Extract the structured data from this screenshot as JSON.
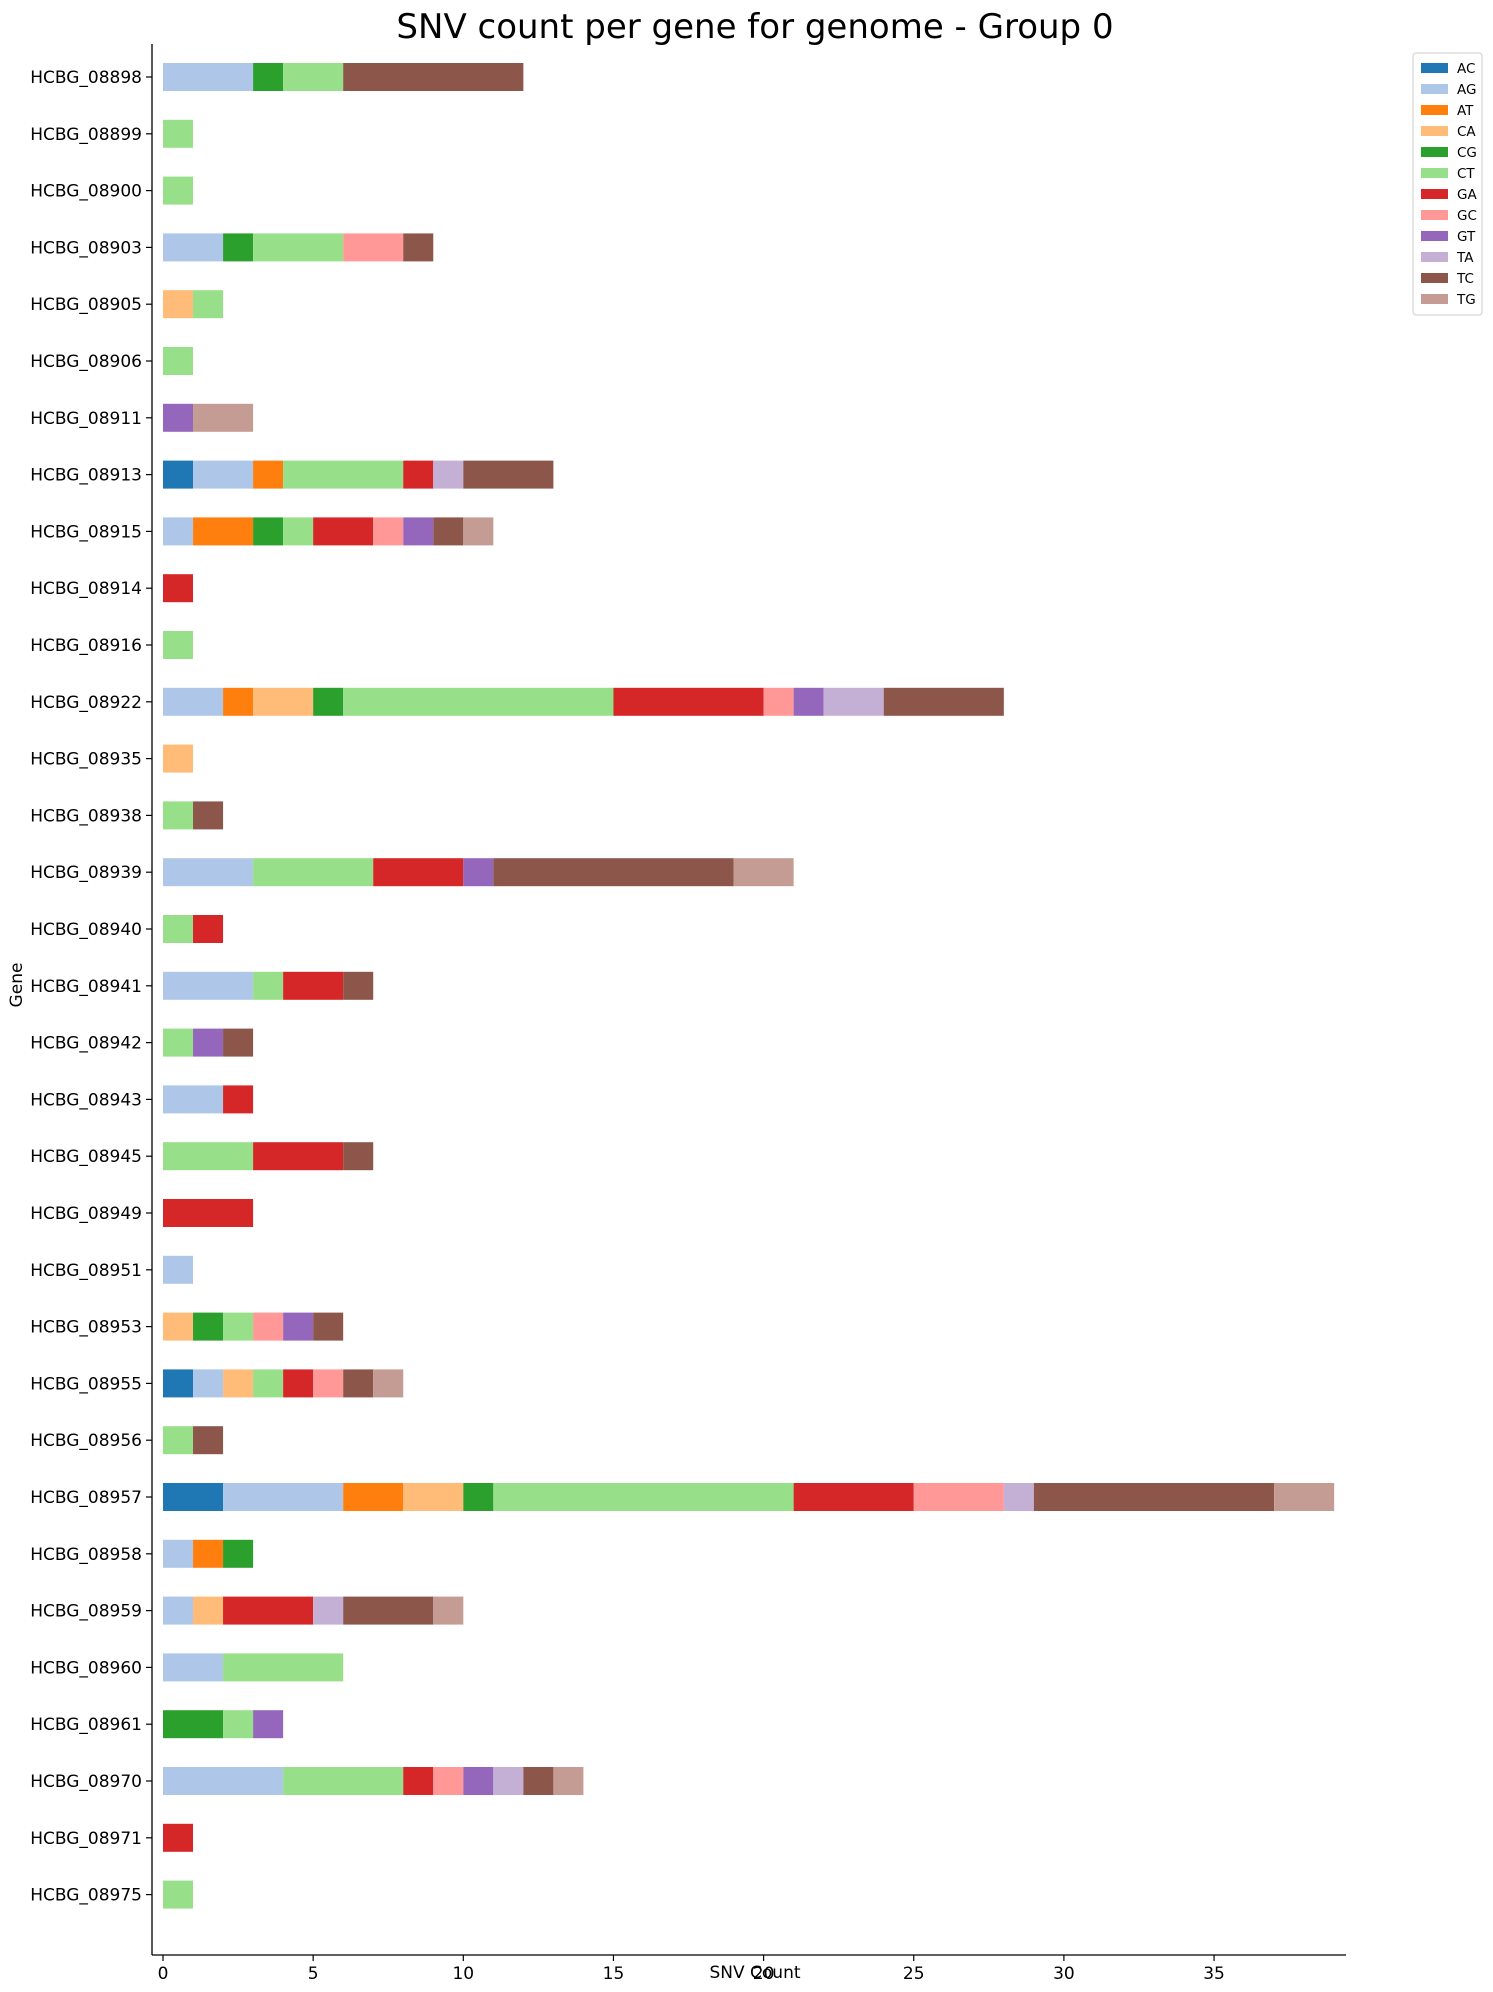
{
  "chart_data": {
    "type": "bar",
    "orientation": "horizontal",
    "stacked": true,
    "title": "SNV count per gene for genome - Group 0",
    "xlabel": "SNV Count",
    "ylabel": "Gene",
    "xlim": [
      0,
      39.5
    ],
    "xticks": [
      0,
      5,
      10,
      15,
      20,
      25,
      30,
      35
    ],
    "grid": false,
    "legend_position": "top-right-outside",
    "categories": [
      "HCBG_08898",
      "HCBG_08899",
      "HCBG_08900",
      "HCBG_08903",
      "HCBG_08905",
      "HCBG_08906",
      "HCBG_08911",
      "HCBG_08913",
      "HCBG_08915",
      "HCBG_08914",
      "HCBG_08916",
      "HCBG_08922",
      "HCBG_08935",
      "HCBG_08938",
      "HCBG_08939",
      "HCBG_08940",
      "HCBG_08941",
      "HCBG_08942",
      "HCBG_08943",
      "HCBG_08945",
      "HCBG_08949",
      "HCBG_08951",
      "HCBG_08953",
      "HCBG_08955",
      "HCBG_08956",
      "HCBG_08957",
      "HCBG_08958",
      "HCBG_08959",
      "HCBG_08960",
      "HCBG_08961",
      "HCBG_08970",
      "HCBG_08971",
      "HCBG_08975"
    ],
    "series": [
      {
        "name": "AC",
        "color": "#1f77b4",
        "values": [
          0,
          0,
          0,
          0,
          0,
          0,
          0,
          1,
          0,
          0,
          0,
          0,
          0,
          0,
          0,
          0,
          0,
          0,
          0,
          0,
          0,
          0,
          0,
          1,
          0,
          2,
          0,
          0,
          0,
          0,
          0,
          0,
          0
        ]
      },
      {
        "name": "AG",
        "color": "#aec7e8",
        "values": [
          3,
          0,
          0,
          2,
          0,
          0,
          0,
          2,
          1,
          0,
          0,
          2,
          0,
          0,
          3,
          0,
          3,
          0,
          2,
          0,
          0,
          1,
          0,
          1,
          0,
          4,
          1,
          1,
          2,
          0,
          4,
          0,
          0
        ]
      },
      {
        "name": "AT",
        "color": "#ff7f0e",
        "values": [
          0,
          0,
          0,
          0,
          0,
          0,
          0,
          1,
          2,
          0,
          0,
          1,
          0,
          0,
          0,
          0,
          0,
          0,
          0,
          0,
          0,
          0,
          0,
          0,
          0,
          2,
          1,
          0,
          0,
          0,
          0,
          0,
          0
        ]
      },
      {
        "name": "CA",
        "color": "#ffbb78",
        "values": [
          0,
          0,
          0,
          0,
          1,
          0,
          0,
          0,
          0,
          0,
          0,
          2,
          1,
          0,
          0,
          0,
          0,
          0,
          0,
          0,
          0,
          0,
          1,
          1,
          0,
          2,
          0,
          1,
          0,
          0,
          0,
          0,
          0
        ]
      },
      {
        "name": "CG",
        "color": "#2ca02c",
        "values": [
          1,
          0,
          0,
          1,
          0,
          0,
          0,
          0,
          1,
          0,
          0,
          1,
          0,
          0,
          0,
          0,
          0,
          0,
          0,
          0,
          0,
          0,
          1,
          0,
          0,
          1,
          1,
          0,
          0,
          2,
          0,
          0,
          0
        ]
      },
      {
        "name": "CT",
        "color": "#98df8a",
        "values": [
          2,
          1,
          1,
          3,
          1,
          1,
          0,
          4,
          1,
          0,
          1,
          9,
          0,
          1,
          4,
          1,
          1,
          1,
          0,
          3,
          0,
          0,
          1,
          1,
          1,
          10,
          0,
          0,
          4,
          1,
          4,
          0,
          1
        ]
      },
      {
        "name": "GA",
        "color": "#d62728",
        "values": [
          0,
          0,
          0,
          0,
          0,
          0,
          0,
          1,
          2,
          1,
          0,
          5,
          0,
          0,
          3,
          1,
          2,
          0,
          1,
          3,
          3,
          0,
          0,
          1,
          0,
          4,
          0,
          3,
          0,
          0,
          1,
          1,
          0
        ]
      },
      {
        "name": "GC",
        "color": "#ff9896",
        "values": [
          0,
          0,
          0,
          2,
          0,
          0,
          0,
          0,
          1,
          0,
          0,
          1,
          0,
          0,
          0,
          0,
          0,
          0,
          0,
          0,
          0,
          0,
          1,
          1,
          0,
          3,
          0,
          0,
          0,
          0,
          1,
          0,
          0
        ]
      },
      {
        "name": "GT",
        "color": "#9467bd",
        "values": [
          0,
          0,
          0,
          0,
          0,
          0,
          1,
          0,
          1,
          0,
          0,
          1,
          0,
          0,
          1,
          0,
          0,
          1,
          0,
          0,
          0,
          0,
          1,
          0,
          0,
          0,
          0,
          0,
          0,
          1,
          1,
          0,
          0
        ]
      },
      {
        "name": "TA",
        "color": "#c5b0d5",
        "values": [
          0,
          0,
          0,
          0,
          0,
          0,
          0,
          1,
          0,
          0,
          0,
          2,
          0,
          0,
          0,
          0,
          0,
          0,
          0,
          0,
          0,
          0,
          0,
          0,
          0,
          1,
          0,
          1,
          0,
          0,
          1,
          0,
          0
        ]
      },
      {
        "name": "TC",
        "color": "#8c564b",
        "values": [
          6,
          0,
          0,
          1,
          0,
          0,
          0,
          3,
          1,
          0,
          0,
          4,
          0,
          1,
          8,
          0,
          1,
          1,
          0,
          1,
          0,
          0,
          1,
          1,
          1,
          8,
          0,
          3,
          0,
          0,
          1,
          0,
          0
        ]
      },
      {
        "name": "TG",
        "color": "#c49c94",
        "values": [
          0,
          0,
          0,
          0,
          0,
          0,
          2,
          0,
          1,
          0,
          0,
          0,
          0,
          0,
          2,
          0,
          0,
          0,
          0,
          0,
          0,
          0,
          0,
          1,
          0,
          2,
          0,
          1,
          0,
          0,
          1,
          0,
          0
        ]
      }
    ]
  }
}
